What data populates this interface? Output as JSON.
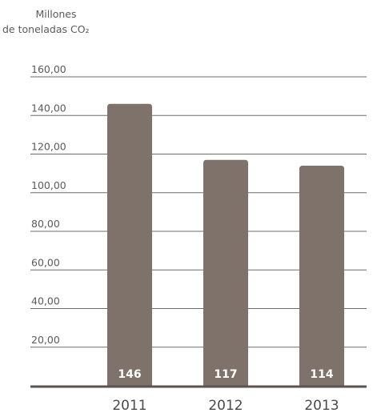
{
  "chart_data": {
    "type": "bar",
    "ylabel_line1": "Millones",
    "ylabel_line2": "de toneladas CO₂",
    "categories": [
      "2011",
      "2012",
      "2013"
    ],
    "values": [
      146,
      117,
      114
    ],
    "value_labels": [
      "146",
      "117",
      "114"
    ],
    "ylim": [
      0,
      160
    ],
    "y_ticks": [
      20,
      40,
      60,
      80,
      100,
      120,
      140,
      160
    ],
    "y_tick_labels": [
      "20,00",
      "40,00",
      "60,00",
      "80,00",
      "100,00",
      "120,00",
      "140,00",
      "160,00"
    ],
    "grid": true,
    "legend": "none",
    "bar_color": "#7e726b",
    "grid_color": "#6b6b6b",
    "axis_color": "#5a534f"
  }
}
